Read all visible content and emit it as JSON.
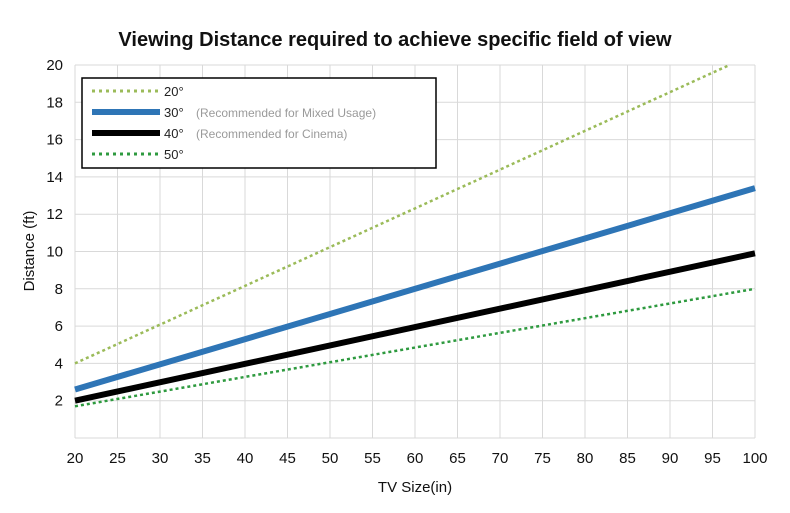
{
  "chart_data": {
    "type": "line",
    "title": "Viewing Distance required to achieve specific field of view",
    "xlabel": "TV Size(in)",
    "ylabel": "Distance (ft)",
    "xlim": [
      20,
      100
    ],
    "ylim": [
      0,
      20
    ],
    "x_ticks": [
      20,
      25,
      30,
      35,
      40,
      45,
      50,
      55,
      60,
      65,
      70,
      75,
      80,
      85,
      90,
      95,
      100
    ],
    "y_ticks": [
      2,
      4,
      6,
      8,
      10,
      12,
      14,
      16,
      18,
      20
    ],
    "grid": true,
    "legend_position": "top-left",
    "series": [
      {
        "name": "20°",
        "note": "",
        "color": "#9bbb59",
        "style": "dotted",
        "x": [
          20,
          97
        ],
        "values": [
          4.0,
          20.0
        ]
      },
      {
        "name": "30°",
        "note": "(Recommended for Mixed Usage)",
        "color": "#2e75b6",
        "style": "solid",
        "x": [
          20,
          100
        ],
        "values": [
          2.6,
          13.4
        ]
      },
      {
        "name": "40°",
        "note": "(Recommended for Cinema)",
        "color": "#000000",
        "style": "solid",
        "x": [
          20,
          100
        ],
        "values": [
          2.0,
          9.9
        ]
      },
      {
        "name": "50°",
        "note": "",
        "color": "#2e9a3f",
        "style": "dotted",
        "x": [
          20,
          100
        ],
        "values": [
          1.7,
          8.0
        ]
      }
    ]
  }
}
